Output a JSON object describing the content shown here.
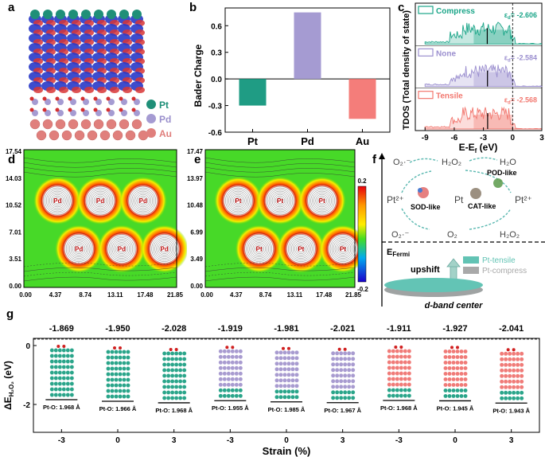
{
  "panel_labels": {
    "a": "a",
    "b": "b",
    "c": "c",
    "d": "d",
    "e": "e",
    "f": "f",
    "g": "g"
  },
  "colors": {
    "pt": "#2aa58a",
    "pd": "#a89bd0",
    "au": "#f07b78",
    "compress": "#1aa588",
    "none": "#9b8fcf",
    "tensile": "#f2776f",
    "substrate_blue": "#2838c8",
    "substrate_red": "#d83535"
  },
  "panel_a": {
    "legend": [
      {
        "label": "Pt",
        "color": "#1f8f78"
      },
      {
        "label": "Pd",
        "color": "#a59bd2"
      },
      {
        "label": "Au",
        "color": "#e07f7c"
      }
    ]
  },
  "panel_d": {
    "y_ticks": [
      "17.54",
      "14.03",
      "10.52",
      "7.01",
      "3.51",
      "0.00"
    ],
    "x_ticks": [
      "0.00",
      "4.37",
      "8.74",
      "13.11",
      "17.48",
      "21.85"
    ],
    "atom_labels": [
      "Pd",
      "Pd",
      "Pd",
      "Pd",
      "Pd",
      "Pd"
    ]
  },
  "panel_e": {
    "y_ticks": [
      "17.47",
      "13.97",
      "10.48",
      "6.99",
      "3.49",
      "0.00"
    ],
    "x_ticks": [
      "0.00",
      "4.37",
      "8.74",
      "13.11",
      "17.48",
      "21.85"
    ],
    "atom_labels": [
      "Pt",
      "Pt",
      "Pt",
      "Pt",
      "Pt",
      "Pt"
    ],
    "colorbar_max": "0.2",
    "colorbar_min": "-0.2"
  },
  "panel_f": {
    "species": {
      "o2_top_left": "O₂·⁻",
      "h2o2_top": "H₂O₂",
      "h2o_top": "H₂O",
      "pt_left": "Pt²⁺",
      "pt_mid": "Pt",
      "pt_right": "Pt²⁺",
      "o2_bottom_left": "O₂·⁻",
      "o2_bottom": "O₂",
      "h2o2_bottom": "H₂O₂"
    },
    "enzymes": {
      "sod": "SOD-like",
      "cat": "CAT-like",
      "pod": "POD-like"
    },
    "efermi": "E",
    "efermi_sub": "Fermi",
    "upshift": "upshift",
    "legend": [
      {
        "label": "Pt-tensile",
        "color": "#62c3b4"
      },
      {
        "label": "Pt-compress",
        "color": "#a9a9a9"
      }
    ],
    "dband": "d-band center"
  },
  "chart_data": [
    {
      "panel": "b",
      "type": "bar",
      "categories": [
        "Pt",
        "Pd",
        "Au"
      ],
      "values": [
        -0.3,
        0.75,
        -0.45
      ],
      "colors": [
        "#1f9c84",
        "#a59bd2",
        "#f47d7a"
      ],
      "title": "",
      "xlabel": "",
      "ylabel": "Bader Charge",
      "ylim": [
        -0.6,
        0.8
      ],
      "y_ticks": [
        -0.6,
        -0.3,
        0.0,
        0.3,
        0.6
      ]
    },
    {
      "panel": "c",
      "type": "area",
      "xlabel": "E-E",
      "xlabel_sub": "f",
      "xlabel_unit": " (eV)",
      "ylabel": "TDOS (Total density of state)",
      "xlim": [
        -10,
        3
      ],
      "x_ticks": [
        -9,
        -6,
        -3,
        0,
        3
      ],
      "fermi_level": 0,
      "series": [
        {
          "name": "Compress",
          "ed_label": "ε",
          "ed_sub": "d",
          "ed_value": "= -2.606",
          "color": "#1aa588"
        },
        {
          "name": "None",
          "ed_label": "ε",
          "ed_sub": "d",
          "ed_value": "= -2.584",
          "color": "#9b8fcf"
        },
        {
          "name": "Tensile",
          "ed_label": "ε",
          "ed_sub": "d",
          "ed_value": "= -2.568",
          "color": "#f2776f"
        }
      ]
    },
    {
      "panel": "g",
      "type": "scatter",
      "xlabel": "Strain (%)",
      "ylabel": "ΔE",
      "ylabel_sub": "H₂O₂",
      "ylabel_unit": " (eV)",
      "y_ticks": [
        -2,
        0
      ],
      "categories": [
        "-3",
        "0",
        "3",
        "-3",
        "0",
        "3",
        "-3",
        "0",
        "3"
      ],
      "values": [
        -1.869,
        -1.95,
        -2.028,
        -1.919,
        -1.981,
        -2.021,
        -1.911,
        -1.927,
        -2.041
      ],
      "value_labels": [
        "-1.869",
        "-1.950",
        "-2.028",
        "-1.919",
        "-1.981",
        "-2.021",
        "-1.911",
        "-1.927",
        "-2.041"
      ],
      "bond_labels": [
        "Pt-O: 1.968 Å",
        "Pt-O: 1.966 Å",
        "Pt-O: 1.968 Å",
        "Pt-O: 1.955 Å",
        "Pt-O: 1.985 Å",
        "Pt-O: 1.967 Å",
        "Pt-O: 1.968 Å",
        "Pt-O: 1.945 Å",
        "Pt-O: 1.943 Å"
      ],
      "substrates": [
        "Pt",
        "Pt",
        "Pt",
        "Pd",
        "Pd",
        "Pd",
        "Au",
        "Au",
        "Au"
      ]
    }
  ]
}
